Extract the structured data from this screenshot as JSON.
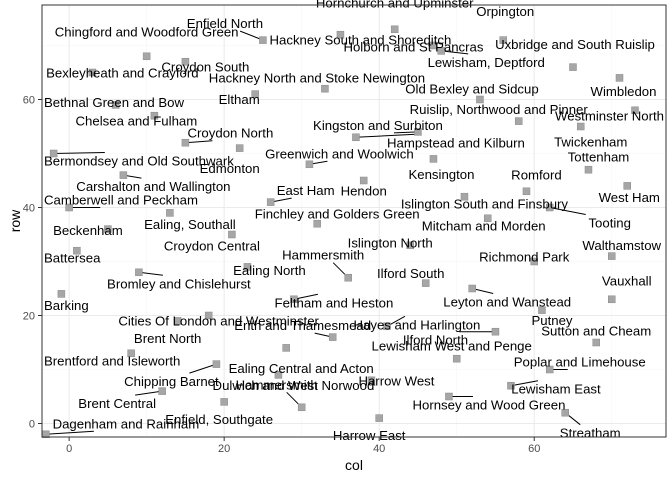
{
  "chart_data": {
    "type": "scatter",
    "title": "",
    "xlabel": "col",
    "ylabel": "row",
    "xlim": [
      -3.5,
      77
    ],
    "ylim": [
      -2.5,
      77.5
    ],
    "xticks": [
      0,
      20,
      40,
      60
    ],
    "yticks": [
      0,
      20,
      40,
      60
    ],
    "grid": true,
    "legend": "none",
    "colors": {
      "point_fill": "#a6a6a6",
      "point_stroke": "#8a8a8a",
      "grid_major": "#ebebeb",
      "grid_minor": "#f5f5f5",
      "panel_border": "#333333",
      "leader": "#000000"
    },
    "points": [
      {
        "name": "Chingford and Woodford Green",
        "x": 10,
        "y": 68
      },
      {
        "name": "Hornchurch and Upminster",
        "x": 42,
        "y": 73
      },
      {
        "name": "Orpington",
        "x": 56,
        "y": 71
      },
      {
        "name": "Enfield North",
        "x": 25,
        "y": 71
      },
      {
        "name": "Hackney South and Shoreditch",
        "x": 35,
        "y": 72
      },
      {
        "name": "Uxbridge and South Ruislip",
        "x": 65,
        "y": 66
      },
      {
        "name": "Bexleyheath and Crayford",
        "x": 3,
        "y": 65
      },
      {
        "name": "Croydon South",
        "x": 15,
        "y": 67
      },
      {
        "name": "Holborn and St Pancras",
        "x": 47,
        "y": 70
      },
      {
        "name": "Lewisham, Deptford",
        "x": 48,
        "y": 69
      },
      {
        "name": "Hackney North and Stoke Newington",
        "x": 33,
        "y": 62
      },
      {
        "name": "Wimbledon",
        "x": 71,
        "y": 64
      },
      {
        "name": "Bethnal Green and Bow",
        "x": 6,
        "y": 59
      },
      {
        "name": "Eltham",
        "x": 24,
        "y": 61
      },
      {
        "name": "Old Bexley and Sidcup",
        "x": 53,
        "y": 60
      },
      {
        "name": "Westminster North",
        "x": 73,
        "y": 58
      },
      {
        "name": "Ruislip, Northwood and Pinner",
        "x": 58,
        "y": 56
      },
      {
        "name": "Chelsea and Fulham",
        "x": 11,
        "y": 57
      },
      {
        "name": "Kingston and Surbiton",
        "x": 45,
        "y": 54
      },
      {
        "name": "Croydon North",
        "x": 15,
        "y": 52
      },
      {
        "name": "Hampstead and Kilburn",
        "x": 37,
        "y": 53
      },
      {
        "name": "Twickenham",
        "x": 66,
        "y": 55
      },
      {
        "name": "Bermondsey and Old Southwark",
        "x": -2,
        "y": 50
      },
      {
        "name": "Greenwich and Woolwich",
        "x": 31,
        "y": 48
      },
      {
        "name": "Edmonton",
        "x": 22,
        "y": 51
      },
      {
        "name": "Tottenham",
        "x": 67,
        "y": 47
      },
      {
        "name": "Carshalton and Wallington",
        "x": 7,
        "y": 46
      },
      {
        "name": "Kensington",
        "x": 47,
        "y": 49
      },
      {
        "name": "Hendon",
        "x": 38,
        "y": 45
      },
      {
        "name": "Romford",
        "x": 59,
        "y": 43
      },
      {
        "name": "West Ham",
        "x": 72,
        "y": 44
      },
      {
        "name": "East Ham",
        "x": 26,
        "y": 41
      },
      {
        "name": "Camberwell and Peckham",
        "x": 0,
        "y": 40
      },
      {
        "name": "Islington South and Finsbury",
        "x": 51,
        "y": 42
      },
      {
        "name": "Ealing, Southall",
        "x": 13,
        "y": 39
      },
      {
        "name": "Finchley and Golders Green",
        "x": 32,
        "y": 37
      },
      {
        "name": "Tooting",
        "x": 62,
        "y": 40
      },
      {
        "name": "Mitcham and Morden",
        "x": 54,
        "y": 38
      },
      {
        "name": "Beckenham",
        "x": 5,
        "y": 36
      },
      {
        "name": "Croydon Central",
        "x": 21,
        "y": 35
      },
      {
        "name": "Islington North",
        "x": 44,
        "y": 33
      },
      {
        "name": "Walthamstow",
        "x": 70,
        "y": 31
      },
      {
        "name": "Battersea",
        "x": 1,
        "y": 32
      },
      {
        "name": "Bromley and Chislehurst",
        "x": 9,
        "y": 28
      },
      {
        "name": "Hammersmith",
        "x": 36,
        "y": 27
      },
      {
        "name": "Ealing North",
        "x": 23,
        "y": 29
      },
      {
        "name": "Ilford South",
        "x": 46,
        "y": 26
      },
      {
        "name": "Richmond Park",
        "x": 60,
        "y": 30
      },
      {
        "name": "Vauxhall",
        "x": 70,
        "y": 23
      },
      {
        "name": "Barking",
        "x": -1,
        "y": 24
      },
      {
        "name": "Cities Of London and Westminster",
        "x": 18,
        "y": 20
      },
      {
        "name": "Feltham and Heston",
        "x": 29,
        "y": 23
      },
      {
        "name": "Leyton and Wanstead",
        "x": 52,
        "y": 25
      },
      {
        "name": "Putney",
        "x": 61,
        "y": 21
      },
      {
        "name": "Brent North",
        "x": 14,
        "y": 19
      },
      {
        "name": "Erith and Thamesmead",
        "x": 34,
        "y": 16
      },
      {
        "name": "Hayes and Harlington",
        "x": 41,
        "y": 18
      },
      {
        "name": "Sutton and Cheam",
        "x": 68,
        "y": 15
      },
      {
        "name": "Brentford and Isleworth",
        "x": 8,
        "y": 13
      },
      {
        "name": "Ilford North",
        "x": 55,
        "y": 17
      },
      {
        "name": "Lewisham West and Penge",
        "x": 50,
        "y": 12
      },
      {
        "name": "Ealing Central and Acton",
        "x": 28,
        "y": 14
      },
      {
        "name": "Poplar and Limehouse",
        "x": 62,
        "y": 10
      },
      {
        "name": "Chipping Barnet",
        "x": 19,
        "y": 11
      },
      {
        "name": "Harrow West",
        "x": 39,
        "y": 8
      },
      {
        "name": "Dulwich and West Norwood",
        "x": 27,
        "y": 9
      },
      {
        "name": "Lewisham East",
        "x": 57,
        "y": 7
      },
      {
        "name": "Brent Central",
        "x": 12,
        "y": 6
      },
      {
        "name": "Hornsey and Wood Green",
        "x": 49,
        "y": 5
      },
      {
        "name": "Enfield, Southgate",
        "x": 20,
        "y": 4
      },
      {
        "name": "Streatham",
        "x": 64,
        "y": 2
      },
      {
        "name": "Dagenham and Rainham",
        "x": -3,
        "y": -2
      },
      {
        "name": "Harrow East",
        "x": 40,
        "y": 1
      },
      {
        "name": "Hammersmith",
        "x": 30,
        "y": 3
      }
    ]
  }
}
